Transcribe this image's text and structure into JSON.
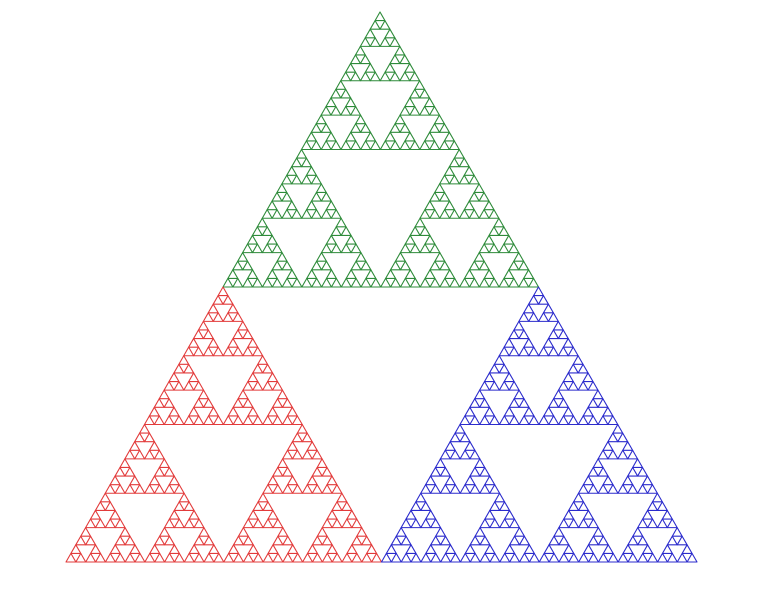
{
  "figure": {
    "type": "sierpinski-triangle",
    "background_color": "#ffffff",
    "depth": 6,
    "sub_triangles": [
      {
        "position": "top",
        "color": "#2e8b3a"
      },
      {
        "position": "bottom-left",
        "color": "#e23b3b"
      },
      {
        "position": "bottom-right",
        "color": "#2b2bcc"
      }
    ]
  }
}
